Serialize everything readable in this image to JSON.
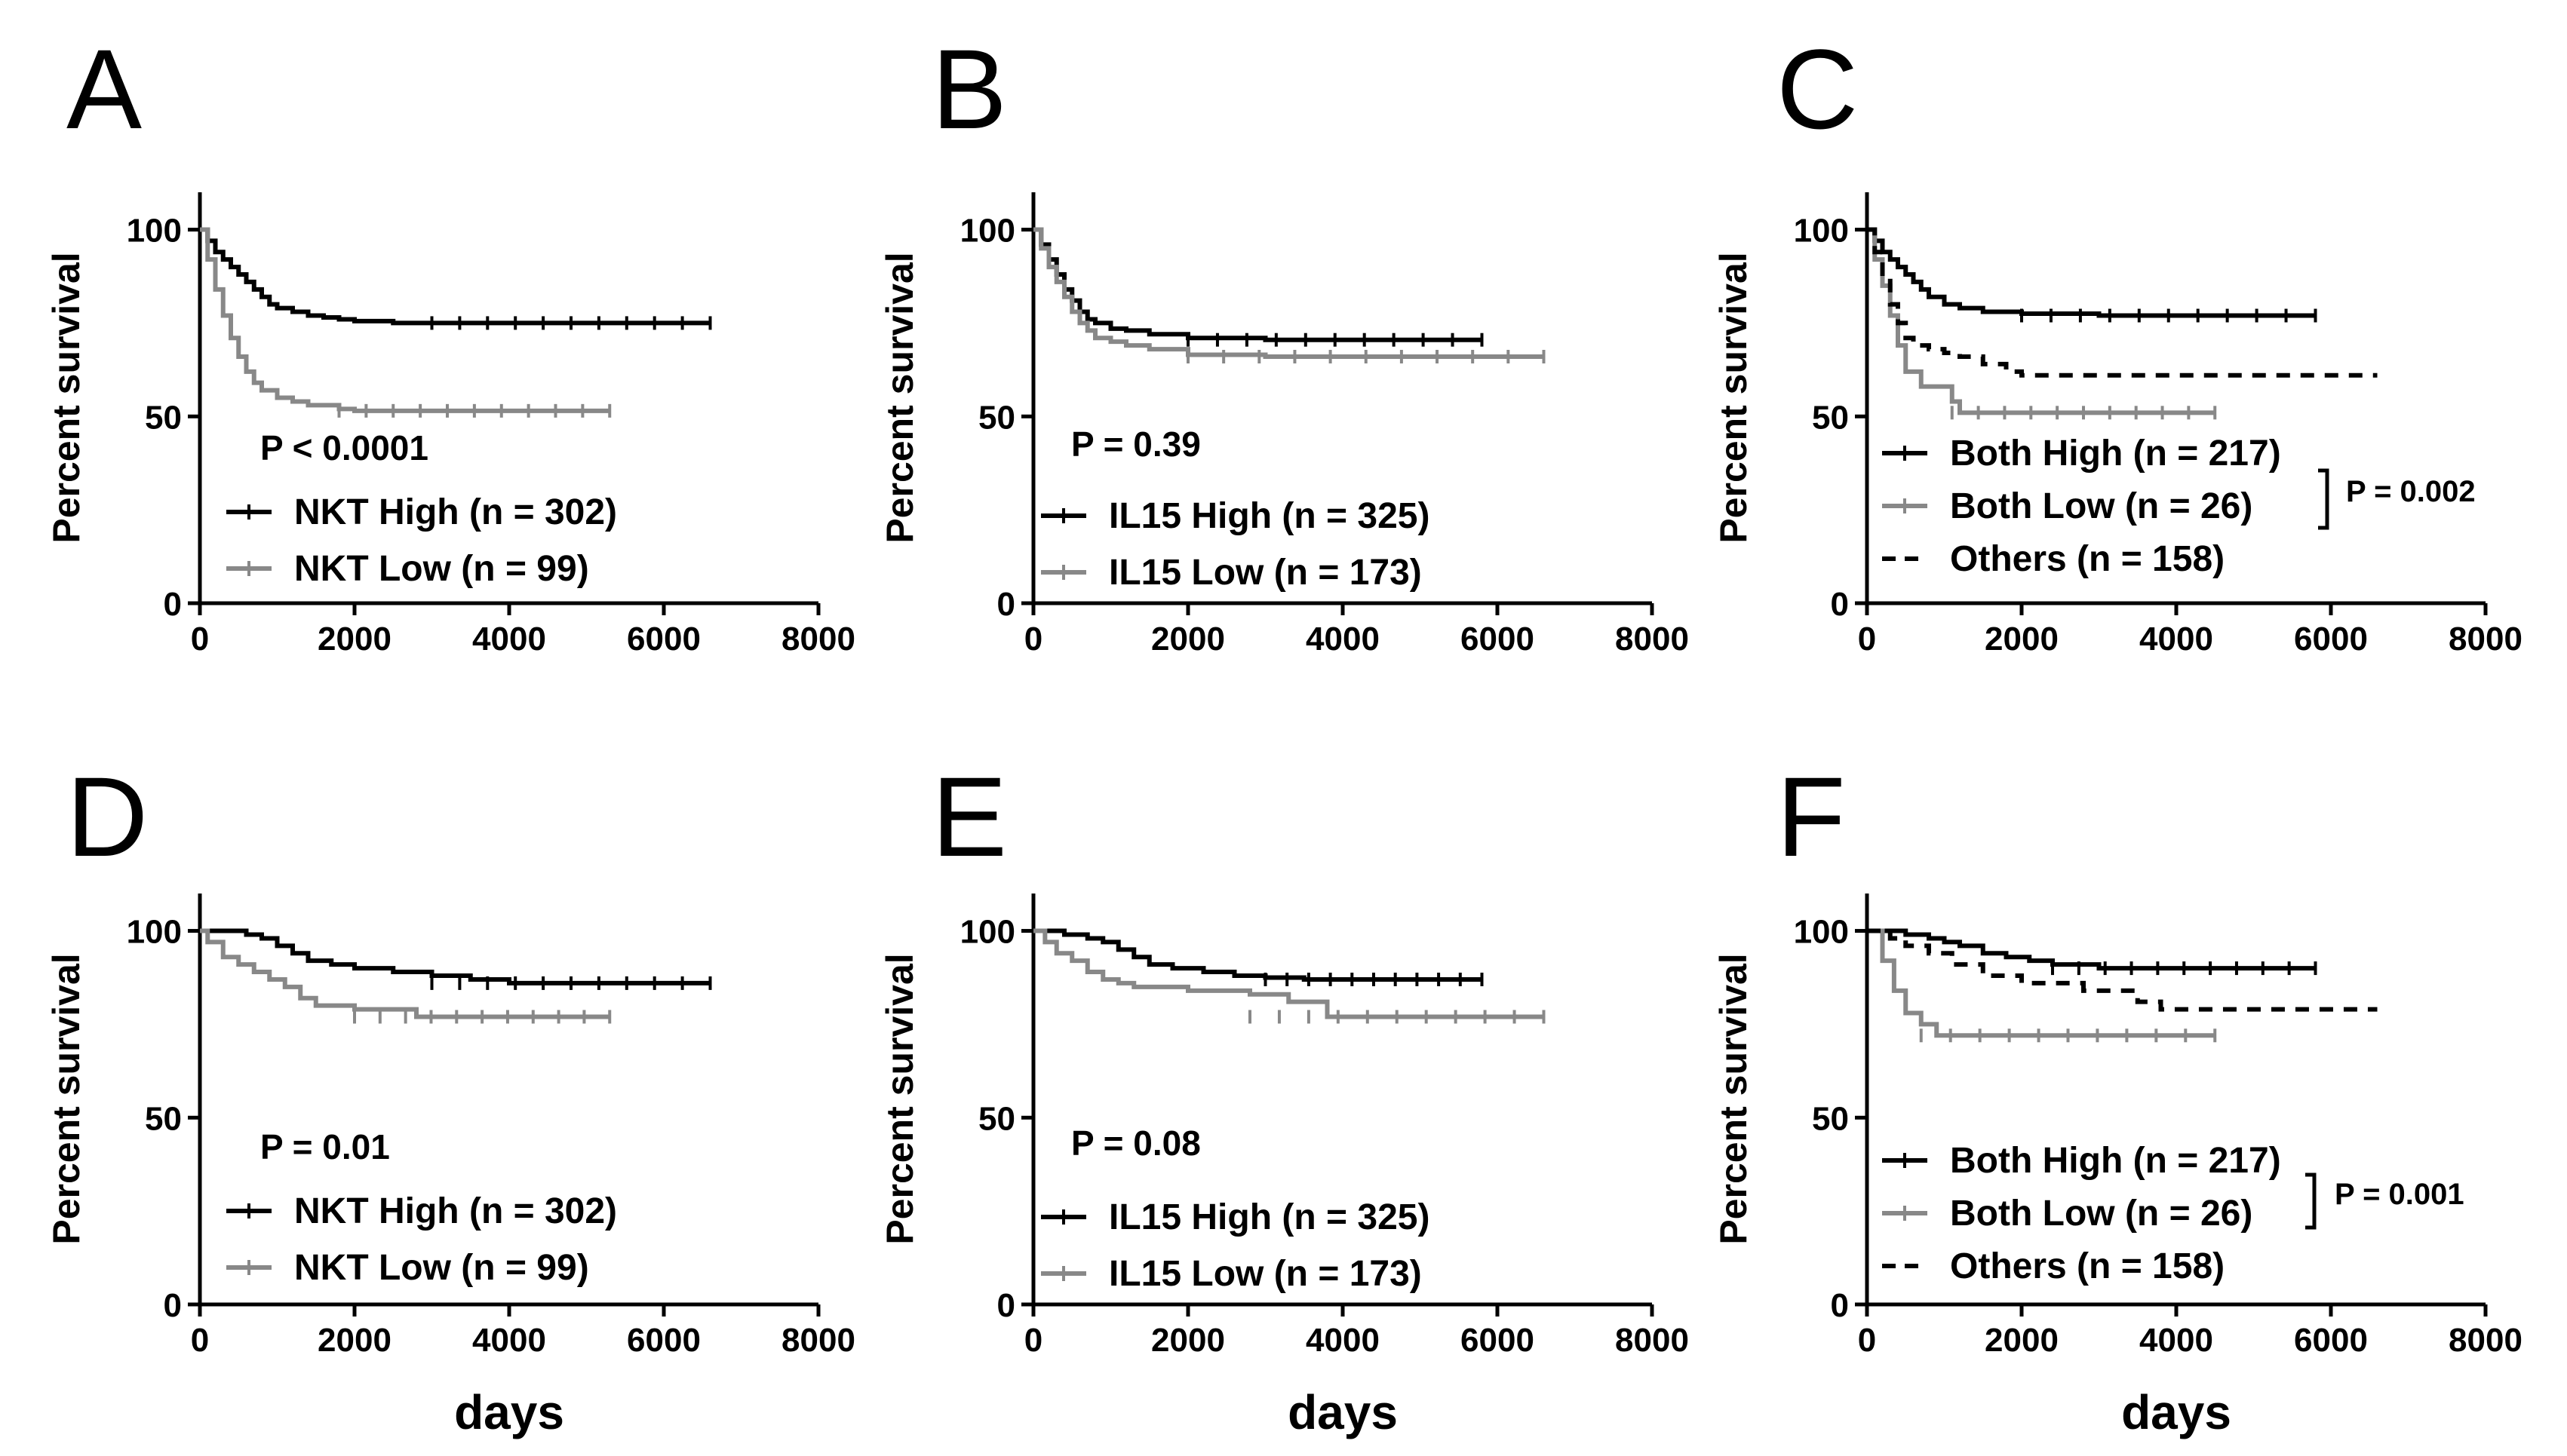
{
  "colors": {
    "black": "#000000",
    "gray": "#888888",
    "background": "#ffffff"
  },
  "chart_data": [
    {
      "panel": "A",
      "type": "line",
      "ylabel": "Percent survival",
      "xlabel": "",
      "xlim": [
        0,
        8000
      ],
      "ylim": [
        0,
        110
      ],
      "xticks": [
        "0",
        "2000",
        "4000",
        "6000",
        "8000"
      ],
      "yticks": [
        "0",
        "50",
        "100"
      ],
      "pvalue": {
        "text": "P < 0.0001",
        "placement": "mid-left"
      },
      "legend_placement": "bottom-left",
      "series": [
        {
          "name": "NKT High (n = 302)",
          "color": "#000000",
          "dash": "solid",
          "x": [
            0,
            100,
            200,
            300,
            400,
            500,
            600,
            700,
            800,
            900,
            1000,
            1200,
            1400,
            1600,
            1800,
            2000,
            2500,
            3000,
            4000,
            5000,
            6000,
            6600
          ],
          "y": [
            100,
            97,
            94,
            92,
            90,
            88,
            86,
            84,
            82,
            80,
            79,
            78,
            77,
            76.5,
            76,
            75.5,
            75,
            75,
            75,
            75,
            75,
            75
          ]
        },
        {
          "name": "NKT Low (n = 99)",
          "color": "#888888",
          "dash": "solid",
          "x": [
            0,
            100,
            200,
            300,
            400,
            500,
            600,
            700,
            800,
            1000,
            1200,
            1400,
            1600,
            1800,
            2000,
            3000,
            4000,
            5300
          ],
          "y": [
            100,
            92,
            84,
            77,
            71,
            66,
            62,
            59,
            57,
            55,
            54,
            53,
            53,
            52,
            51.5,
            51.5,
            51.5,
            51.5
          ]
        }
      ]
    },
    {
      "panel": "B",
      "type": "line",
      "ylabel": "Percent survival",
      "xlabel": "",
      "xlim": [
        0,
        8000
      ],
      "ylim": [
        0,
        110
      ],
      "xticks": [
        "0",
        "2000",
        "4000",
        "6000",
        "8000"
      ],
      "yticks": [
        "0",
        "50",
        "100"
      ],
      "pvalue": {
        "text": "P = 0.39",
        "placement": "mid-left"
      },
      "legend_placement": "bottom-left",
      "series": [
        {
          "name": "IL15 High (n = 325)",
          "color": "#000000",
          "dash": "solid",
          "x": [
            0,
            100,
            200,
            300,
            400,
            500,
            600,
            700,
            800,
            1000,
            1200,
            1500,
            2000,
            3000,
            4000,
            5000,
            5800
          ],
          "y": [
            100,
            96,
            92,
            88,
            84,
            81,
            78,
            76,
            75,
            73.5,
            73,
            72,
            71,
            70.5,
            70.5,
            70.5,
            70.5
          ]
        },
        {
          "name": "IL15 Low (n = 173)",
          "color": "#888888",
          "dash": "solid",
          "x": [
            0,
            100,
            200,
            300,
            400,
            500,
            600,
            700,
            800,
            1000,
            1200,
            1500,
            2000,
            3000,
            4000,
            5000,
            6600
          ],
          "y": [
            100,
            95,
            90,
            86,
            82,
            78,
            75,
            73,
            71,
            70,
            69,
            68,
            66.5,
            66,
            66,
            66,
            66
          ]
        }
      ]
    },
    {
      "panel": "C",
      "type": "line",
      "ylabel": "Percent survival",
      "xlabel": "",
      "xlim": [
        0,
        8000
      ],
      "ylim": [
        0,
        110
      ],
      "xticks": [
        "0",
        "2000",
        "4000",
        "6000",
        "8000"
      ],
      "yticks": [
        "0",
        "50",
        "100"
      ],
      "pvalue": {
        "text": "P = 0.002",
        "placement": "right-of-legend"
      },
      "legend_placement": "bottom-left",
      "series": [
        {
          "name": "Both High (n = 217)",
          "color": "#000000",
          "dash": "solid",
          "x": [
            0,
            100,
            200,
            300,
            400,
            500,
            600,
            700,
            800,
            1000,
            1200,
            1500,
            2000,
            3000,
            4000,
            5000,
            5800
          ],
          "y": [
            100,
            97,
            94,
            92,
            90,
            88,
            86,
            84,
            82,
            80,
            79,
            78,
            77.5,
            77,
            77,
            77,
            77
          ]
        },
        {
          "name": "Both Low (n = 26)",
          "color": "#888888",
          "dash": "solid",
          "x": [
            0,
            100,
            200,
            300,
            400,
            500,
            700,
            900,
            1100,
            1200,
            2000,
            3000,
            4500
          ],
          "y": [
            100,
            92,
            85,
            77,
            69,
            62,
            58,
            58,
            54,
            51,
            51,
            51,
            51
          ]
        },
        {
          "name": "Others (n = 158)",
          "color": "#000000",
          "dash": "dashed",
          "x": [
            0,
            100,
            200,
            300,
            400,
            500,
            600,
            800,
            1000,
            1200,
            1500,
            1800,
            2000,
            3000,
            4000,
            5000,
            6600
          ],
          "y": [
            100,
            94,
            87,
            80,
            75,
            71,
            69,
            68,
            67,
            66,
            64,
            62,
            61,
            61,
            61,
            61,
            61
          ]
        }
      ]
    },
    {
      "panel": "D",
      "type": "line",
      "ylabel": "Percent survival",
      "xlabel": "days",
      "xlim": [
        0,
        8000
      ],
      "ylim": [
        0,
        110
      ],
      "xticks": [
        "0",
        "2000",
        "4000",
        "6000",
        "8000"
      ],
      "yticks": [
        "0",
        "50",
        "100"
      ],
      "pvalue": {
        "text": "P = 0.01",
        "placement": "mid-left"
      },
      "legend_placement": "bottom-left",
      "series": [
        {
          "name": "NKT High (n = 302)",
          "color": "#000000",
          "dash": "solid",
          "x": [
            0,
            400,
            600,
            800,
            1000,
            1200,
            1400,
            1700,
            2000,
            2500,
            3000,
            3500,
            4000,
            5000,
            6600
          ],
          "y": [
            100,
            100,
            99,
            98,
            96,
            94,
            92,
            91,
            90,
            89,
            88,
            87,
            86,
            86,
            86
          ]
        },
        {
          "name": "NKT Low (n = 99)",
          "color": "#888888",
          "dash": "solid",
          "x": [
            0,
            100,
            300,
            500,
            700,
            900,
            1100,
            1300,
            1500,
            2000,
            2800,
            3500,
            4500,
            5300
          ],
          "y": [
            100,
            97,
            93,
            91,
            89,
            87,
            85,
            82,
            80,
            79,
            77,
            77,
            77,
            77
          ]
        }
      ]
    },
    {
      "panel": "E",
      "type": "line",
      "ylabel": "Percent survival",
      "xlabel": "days",
      "xlim": [
        0,
        8000
      ],
      "ylim": [
        0,
        110
      ],
      "xticks": [
        "0",
        "2000",
        "4000",
        "6000",
        "8000"
      ],
      "yticks": [
        "0",
        "50",
        "100"
      ],
      "pvalue": {
        "text": "P = 0.08",
        "placement": "mid-left"
      },
      "legend_placement": "bottom-left",
      "series": [
        {
          "name": "IL15 High (n = 325)",
          "color": "#000000",
          "dash": "solid",
          "x": [
            0,
            400,
            700,
            900,
            1100,
            1300,
            1500,
            1800,
            2200,
            2600,
            3000,
            3500,
            4000,
            5000,
            5800
          ],
          "y": [
            100,
            99,
            98,
            97,
            95,
            93,
            91,
            90,
            89,
            88,
            87.5,
            87,
            87,
            87,
            87
          ]
        },
        {
          "name": "IL15 Low (n = 173)",
          "color": "#888888",
          "dash": "solid",
          "x": [
            0,
            150,
            300,
            500,
            700,
            900,
            1100,
            1300,
            2000,
            2800,
            3300,
            3800,
            4500,
            6600
          ],
          "y": [
            100,
            97,
            94,
            92,
            89,
            87,
            86,
            85,
            84,
            83,
            81,
            77,
            77,
            77
          ]
        }
      ]
    },
    {
      "panel": "F",
      "type": "line",
      "ylabel": "Percent survival",
      "xlabel": "days",
      "xlim": [
        0,
        8000
      ],
      "ylim": [
        0,
        110
      ],
      "xticks": [
        "0",
        "2000",
        "4000",
        "6000",
        "8000"
      ],
      "yticks": [
        "0",
        "50",
        "100"
      ],
      "pvalue": {
        "text": "P = 0.001",
        "placement": "right-of-legend"
      },
      "legend_placement": "bottom-left",
      "series": [
        {
          "name": "Both High (n = 217)",
          "color": "#000000",
          "dash": "solid",
          "x": [
            0,
            500,
            800,
            1000,
            1200,
            1500,
            1800,
            2100,
            2400,
            3000,
            4000,
            5000,
            5800
          ],
          "y": [
            100,
            99,
            98,
            97,
            96,
            94,
            93,
            92,
            91,
            90,
            90,
            90,
            90
          ]
        },
        {
          "name": "Both Low (n = 26)",
          "color": "#888888",
          "dash": "solid",
          "x": [
            0,
            200,
            350,
            500,
            700,
            900,
            2000,
            3000,
            4500
          ],
          "y": [
            100,
            92,
            84,
            78,
            75,
            72,
            72,
            72,
            72
          ]
        },
        {
          "name": "Others (n = 158)",
          "color": "#000000",
          "dash": "dashed",
          "x": [
            0,
            300,
            500,
            800,
            1100,
            1500,
            2000,
            2800,
            3500,
            3800,
            4500,
            5500,
            6600
          ],
          "y": [
            100,
            98,
            96,
            94,
            91,
            88,
            86,
            84,
            81,
            79,
            79,
            79,
            79
          ]
        }
      ]
    }
  ]
}
